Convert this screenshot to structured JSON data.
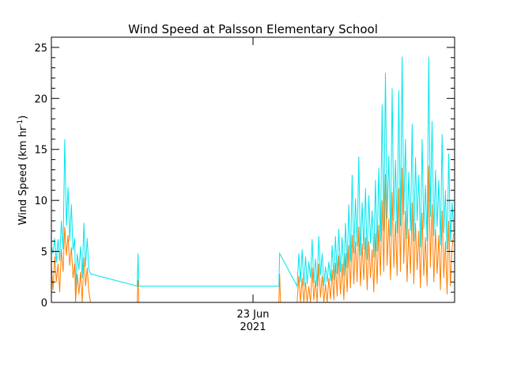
{
  "chart_data": {
    "type": "line",
    "title": "Wind Speed at Palsson Elementary School",
    "ylabel": {
      "main": "Wind Speed (km hr",
      "superscript": "-1",
      "close": ")"
    },
    "x_tick_label": {
      "line1": "23 Jun",
      "line2": "2021"
    },
    "xlim_hours_from_23_jun_0000": [
      -24.3,
      24.1
    ],
    "ylim": [
      0,
      26
    ],
    "yticks": [
      "0",
      "5",
      "10",
      "15",
      "20",
      "25"
    ],
    "grid": false,
    "colors": {
      "gust": "#00e5ee",
      "mean": "#ff7f00",
      "frame": "#000000"
    },
    "series": [
      {
        "name": "",
        "role": "gust",
        "points": [
          [
            -24.3,
            5.5
          ],
          [
            -24.1,
            4.8
          ],
          [
            -23.9,
            6.3
          ],
          [
            -23.7,
            3.9
          ],
          [
            -23.5,
            6.2
          ],
          [
            -23.3,
            4.1
          ],
          [
            -23.1,
            8.0
          ],
          [
            -22.9,
            5.2
          ],
          [
            -22.7,
            16.0
          ],
          [
            -22.5,
            7.5
          ],
          [
            -22.3,
            11.3
          ],
          [
            -22.1,
            6.0
          ],
          [
            -21.9,
            9.6
          ],
          [
            -21.7,
            5.1
          ],
          [
            -21.5,
            6.3
          ],
          [
            -21.4,
            1.0
          ],
          [
            -21.2,
            4.8
          ],
          [
            -21.0,
            3.2
          ],
          [
            -20.8,
            5.5
          ],
          [
            -20.6,
            2.4
          ],
          [
            -20.4,
            7.8
          ],
          [
            -20.2,
            3.5
          ],
          [
            -20.0,
            6.3
          ],
          [
            -19.8,
            3.2
          ],
          [
            -19.6,
            2.8
          ],
          [
            -14.0,
            1.6
          ],
          [
            -13.9,
            4.8
          ],
          [
            -13.8,
            1.6
          ],
          [
            3.0,
            1.6
          ],
          [
            3.1,
            4.8
          ],
          [
            5.2,
            1.6
          ],
          [
            5.4,
            4.8
          ],
          [
            5.6,
            2.0
          ],
          [
            5.8,
            5.2
          ],
          [
            6.0,
            1.6
          ],
          [
            6.2,
            4.5
          ],
          [
            6.4,
            1.8
          ],
          [
            6.6,
            4.0
          ],
          [
            6.8,
            2.4
          ],
          [
            7.0,
            6.2
          ],
          [
            7.2,
            1.9
          ],
          [
            7.4,
            4.3
          ],
          [
            7.6,
            1.6
          ],
          [
            7.8,
            6.5
          ],
          [
            8.0,
            2.7
          ],
          [
            8.2,
            4.8
          ],
          [
            8.4,
            1.6
          ],
          [
            8.6,
            3.5
          ],
          [
            8.8,
            2.0
          ],
          [
            9.0,
            4.0
          ],
          [
            9.2,
            2.1
          ],
          [
            9.4,
            5.6
          ],
          [
            9.6,
            2.2
          ],
          [
            9.8,
            6.5
          ],
          [
            10.0,
            2.8
          ],
          [
            10.2,
            7.2
          ],
          [
            10.4,
            3.0
          ],
          [
            10.6,
            6.4
          ],
          [
            10.8,
            2.6
          ],
          [
            11.0,
            7.8
          ],
          [
            11.2,
            3.4
          ],
          [
            11.4,
            9.6
          ],
          [
            11.6,
            4.0
          ],
          [
            11.8,
            12.5
          ],
          [
            12.0,
            4.8
          ],
          [
            12.2,
            10.2
          ],
          [
            12.4,
            5.5
          ],
          [
            12.6,
            14.3
          ],
          [
            12.8,
            4.6
          ],
          [
            13.0,
            9.8
          ],
          [
            13.2,
            5.2
          ],
          [
            13.4,
            11.2
          ],
          [
            13.6,
            4.2
          ],
          [
            13.8,
            10.5
          ],
          [
            14.0,
            5.8
          ],
          [
            14.2,
            9.0
          ],
          [
            14.4,
            4.4
          ],
          [
            14.6,
            12.0
          ],
          [
            14.8,
            5.0
          ],
          [
            15.0,
            13.2
          ],
          [
            15.2,
            6.0
          ],
          [
            15.4,
            19.4
          ],
          [
            15.6,
            7.0
          ],
          [
            15.8,
            22.5
          ],
          [
            16.0,
            8.2
          ],
          [
            16.2,
            14.4
          ],
          [
            16.4,
            6.5
          ],
          [
            16.6,
            21.0
          ],
          [
            16.8,
            8.0
          ],
          [
            17.0,
            14.0
          ],
          [
            17.2,
            6.8
          ],
          [
            17.4,
            20.8
          ],
          [
            17.6,
            7.5
          ],
          [
            17.8,
            24.1
          ],
          [
            18.0,
            8.6
          ],
          [
            18.2,
            16.0
          ],
          [
            18.4,
            6.2
          ],
          [
            18.6,
            12.8
          ],
          [
            18.8,
            7.0
          ],
          [
            19.0,
            17.5
          ],
          [
            19.2,
            6.0
          ],
          [
            19.4,
            14.2
          ],
          [
            19.6,
            8.0
          ],
          [
            19.8,
            12.5
          ],
          [
            20.0,
            5.4
          ],
          [
            20.2,
            16.0
          ],
          [
            20.4,
            7.2
          ],
          [
            20.6,
            11.5
          ],
          [
            20.8,
            6.0
          ],
          [
            21.0,
            24.1
          ],
          [
            21.2,
            8.4
          ],
          [
            21.4,
            17.8
          ],
          [
            21.6,
            6.5
          ],
          [
            21.8,
            13.0
          ],
          [
            22.0,
            7.4
          ],
          [
            22.2,
            12.0
          ],
          [
            22.4,
            5.6
          ],
          [
            22.6,
            16.5
          ],
          [
            22.8,
            6.8
          ],
          [
            23.0,
            11.0
          ],
          [
            23.2,
            5.2
          ],
          [
            23.4,
            14.6
          ],
          [
            23.6,
            6.0
          ],
          [
            23.8,
            9.8
          ],
          [
            24.0,
            7.0
          ]
        ]
      },
      {
        "name": "",
        "role": "mean",
        "points": [
          [
            -24.3,
            3.5
          ],
          [
            -24.1,
            1.2
          ],
          [
            -23.9,
            4.5
          ],
          [
            -23.7,
            2.0
          ],
          [
            -23.5,
            3.8
          ],
          [
            -23.3,
            1.0
          ],
          [
            -23.1,
            5.2
          ],
          [
            -22.9,
            3.0
          ],
          [
            -22.7,
            7.4
          ],
          [
            -22.5,
            4.6
          ],
          [
            -22.3,
            6.6
          ],
          [
            -22.1,
            3.6
          ],
          [
            -21.9,
            5.4
          ],
          [
            -21.7,
            2.4
          ],
          [
            -21.5,
            3.8
          ],
          [
            -21.4,
            0.0
          ],
          [
            -21.2,
            2.8
          ],
          [
            -21.0,
            0.8
          ],
          [
            -20.8,
            3.0
          ],
          [
            -20.6,
            0.0
          ],
          [
            -20.4,
            4.4
          ],
          [
            -20.2,
            1.6
          ],
          [
            -20.0,
            3.4
          ],
          [
            -19.8,
            1.0
          ],
          [
            -19.6,
            0.0
          ],
          [
            -14.0,
            0.0
          ],
          [
            -13.9,
            2.2
          ],
          [
            -13.8,
            0.0
          ],
          [
            3.0,
            0.0
          ],
          [
            3.1,
            2.8
          ],
          [
            3.2,
            0.0
          ],
          [
            5.2,
            0.0
          ],
          [
            5.4,
            2.6
          ],
          [
            5.6,
            0.0
          ],
          [
            5.8,
            2.4
          ],
          [
            6.0,
            0.0
          ],
          [
            6.2,
            2.0
          ],
          [
            6.4,
            0.0
          ],
          [
            6.6,
            1.6
          ],
          [
            6.8,
            0.0
          ],
          [
            7.0,
            3.4
          ],
          [
            7.2,
            0.2
          ],
          [
            7.4,
            2.2
          ],
          [
            7.6,
            0.0
          ],
          [
            7.8,
            3.8
          ],
          [
            8.0,
            0.5
          ],
          [
            8.2,
            2.6
          ],
          [
            8.4,
            0.0
          ],
          [
            8.6,
            1.8
          ],
          [
            8.8,
            0.0
          ],
          [
            9.0,
            2.4
          ],
          [
            9.2,
            0.3
          ],
          [
            9.4,
            3.2
          ],
          [
            9.6,
            0.2
          ],
          [
            9.8,
            3.9
          ],
          [
            10.0,
            0.6
          ],
          [
            10.2,
            4.6
          ],
          [
            10.4,
            0.8
          ],
          [
            10.6,
            3.8
          ],
          [
            10.8,
            0.2
          ],
          [
            11.0,
            4.8
          ],
          [
            11.2,
            1.0
          ],
          [
            11.4,
            5.6
          ],
          [
            11.6,
            1.4
          ],
          [
            11.8,
            6.6
          ],
          [
            12.0,
            1.8
          ],
          [
            12.2,
            6.0
          ],
          [
            12.4,
            2.0
          ],
          [
            12.6,
            7.4
          ],
          [
            12.8,
            1.6
          ],
          [
            13.0,
            5.8
          ],
          [
            13.2,
            2.2
          ],
          [
            13.4,
            6.4
          ],
          [
            13.6,
            1.2
          ],
          [
            13.8,
            6.0
          ],
          [
            14.0,
            2.4
          ],
          [
            14.2,
            5.2
          ],
          [
            14.4,
            1.0
          ],
          [
            14.6,
            6.8
          ],
          [
            14.8,
            1.8
          ],
          [
            15.0,
            7.6
          ],
          [
            15.2,
            2.6
          ],
          [
            15.4,
            10.0
          ],
          [
            15.6,
            3.0
          ],
          [
            15.8,
            12.6
          ],
          [
            16.0,
            3.6
          ],
          [
            16.2,
            8.2
          ],
          [
            16.4,
            2.2
          ],
          [
            16.6,
            10.8
          ],
          [
            16.8,
            3.4
          ],
          [
            17.0,
            8.0
          ],
          [
            17.2,
            2.6
          ],
          [
            17.4,
            11.2
          ],
          [
            17.6,
            3.0
          ],
          [
            17.8,
            13.2
          ],
          [
            18.0,
            3.8
          ],
          [
            18.2,
            9.0
          ],
          [
            18.4,
            2.0
          ],
          [
            18.6,
            7.2
          ],
          [
            18.8,
            2.8
          ],
          [
            19.0,
            9.8
          ],
          [
            19.2,
            1.8
          ],
          [
            19.4,
            7.8
          ],
          [
            19.6,
            3.2
          ],
          [
            19.8,
            7.0
          ],
          [
            20.0,
            1.4
          ],
          [
            20.2,
            8.8
          ],
          [
            20.4,
            2.6
          ],
          [
            20.6,
            6.4
          ],
          [
            20.8,
            1.6
          ],
          [
            21.0,
            13.4
          ],
          [
            21.2,
            3.4
          ],
          [
            21.4,
            9.6
          ],
          [
            21.6,
            2.0
          ],
          [
            21.8,
            7.2
          ],
          [
            22.0,
            2.8
          ],
          [
            22.2,
            6.6
          ],
          [
            22.4,
            1.2
          ],
          [
            22.6,
            9.0
          ],
          [
            22.8,
            2.4
          ],
          [
            23.0,
            6.0
          ],
          [
            23.2,
            0.8
          ],
          [
            23.4,
            8.0
          ],
          [
            23.6,
            1.6
          ],
          [
            23.8,
            5.4
          ],
          [
            24.0,
            6.8
          ]
        ]
      }
    ]
  }
}
